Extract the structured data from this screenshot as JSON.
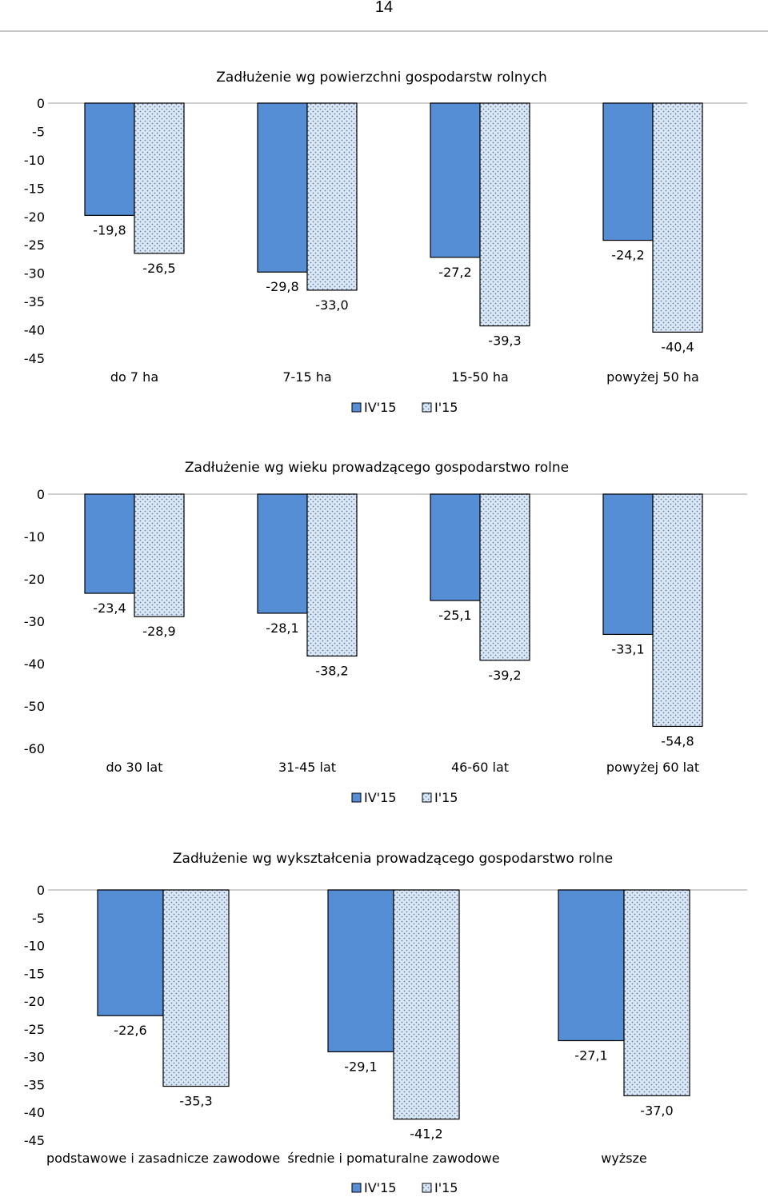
{
  "page": {
    "number": "14"
  },
  "colors": {
    "series1_fill": "#558ed5",
    "series2_fill": "#dbe7f5",
    "series2_dots": "#5b7ba6",
    "bar_stroke": "#000000",
    "axis": "#bfbfbf"
  },
  "chart_data": [
    {
      "type": "bar",
      "title": "Zadłużenie wg powierzchni gospodarstw rolnych",
      "categories": [
        "do 7 ha",
        "7-15 ha",
        "15-50 ha",
        "powyżej 50 ha"
      ],
      "series": [
        {
          "name": "IV'15",
          "values": [
            -19.8,
            -29.8,
            -27.2,
            -24.2
          ],
          "labels": [
            "-19,8",
            "-29,8",
            "-27,2",
            "-24,2"
          ]
        },
        {
          "name": "I'15",
          "values": [
            -26.5,
            -33.0,
            -39.3,
            -40.4
          ],
          "labels": [
            "-26,5",
            "-33,0",
            "-39,3",
            "-40,4"
          ]
        }
      ],
      "ylim": [
        -45,
        0
      ],
      "yticks": [
        0,
        -5,
        -10,
        -15,
        -20,
        -25,
        -30,
        -35,
        -40,
        -45
      ],
      "ytick_labels": [
        "0",
        "-5",
        "-10",
        "-15",
        "-20",
        "-25",
        "-30",
        "-35",
        "-40",
        "-45"
      ],
      "legend_position": "bottom"
    },
    {
      "type": "bar",
      "title": "Zadłużenie wg wieku prowadzącego gospodarstwo rolne",
      "categories": [
        "do 30 lat",
        "31-45 lat",
        "46-60 lat",
        "powyżej 60 lat"
      ],
      "series": [
        {
          "name": "IV'15",
          "values": [
            -23.4,
            -28.1,
            -25.1,
            -33.1
          ],
          "labels": [
            "-23,4",
            "-28,1",
            "-25,1",
            "-33,1"
          ]
        },
        {
          "name": "I'15",
          "values": [
            -28.9,
            -38.2,
            -39.2,
            -54.8
          ],
          "labels": [
            "-28,9",
            "-38,2",
            "-39,2",
            "-54,8"
          ]
        }
      ],
      "ylim": [
        -60,
        0
      ],
      "yticks": [
        0,
        -10,
        -20,
        -30,
        -40,
        -50,
        -60
      ],
      "ytick_labels": [
        "0",
        "-10",
        "-20",
        "-30",
        "-40",
        "-50",
        "-60"
      ],
      "legend_position": "bottom"
    },
    {
      "type": "bar",
      "title": "Zadłużenie wg wykształcenia prowadzącego gospodarstwo rolne",
      "categories": [
        "podstawowe i zasadnicze zawodowe",
        "średnie i pomaturalne zawodowe",
        "wyższe"
      ],
      "series": [
        {
          "name": "IV'15",
          "values": [
            -22.6,
            -29.1,
            -27.1
          ],
          "labels": [
            "-22,6",
            "-29,1",
            "-27,1"
          ]
        },
        {
          "name": "I'15",
          "values": [
            -35.3,
            -41.2,
            -37.0
          ],
          "labels": [
            "-35,3",
            "-41,2",
            "-37,0"
          ]
        }
      ],
      "ylim": [
        -45,
        0
      ],
      "yticks": [
        0,
        -5,
        -10,
        -15,
        -20,
        -25,
        -30,
        -35,
        -40,
        -45
      ],
      "ytick_labels": [
        "0",
        "-5",
        "-10",
        "-15",
        "-20",
        "-25",
        "-30",
        "-35",
        "-40",
        "-45"
      ],
      "legend_position": "bottom"
    }
  ]
}
